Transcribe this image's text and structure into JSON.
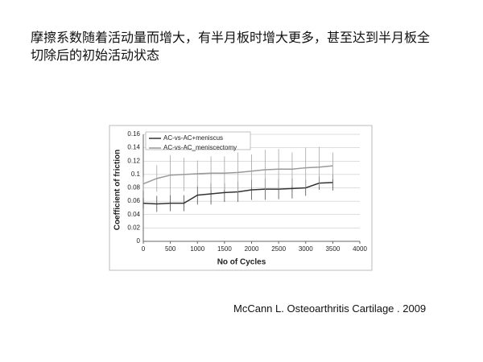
{
  "header": {
    "title": "摩擦系数随着活动量而增大，有半月板时增大更多，甚至达到半月板全切除后的初始活动状态"
  },
  "citation": "McCann L. Osteoarthritis Cartilage . 2009",
  "chart_data": {
    "type": "line",
    "x_label": "No of Cycles",
    "y_label": "Coefficient of friction",
    "x": [
      0,
      250,
      500,
      750,
      1000,
      1250,
      1500,
      1750,
      2000,
      2250,
      2500,
      2750,
      3000,
      3250,
      3500
    ],
    "series": [
      {
        "name": "AC-vs-AC+meniscus",
        "color": "#333333",
        "values": [
          0.057,
          0.056,
          0.057,
          0.057,
          0.069,
          0.071,
          0.073,
          0.074,
          0.077,
          0.078,
          0.078,
          0.079,
          0.08,
          0.087,
          0.088
        ],
        "errors": [
          0.008,
          0.012,
          0.012,
          0.012,
          0.014,
          0.016,
          0.014,
          0.015,
          0.015,
          0.016,
          0.015,
          0.015,
          0.012,
          0.01,
          0.012
        ]
      },
      {
        "name": "AC-vs-AC_meniscectomy",
        "color": "#999999",
        "values": [
          0.086,
          0.094,
          0.099,
          0.1,
          0.101,
          0.102,
          0.102,
          0.103,
          0.105,
          0.107,
          0.108,
          0.108,
          0.11,
          0.111,
          0.113
        ],
        "errors": [
          0.01,
          0.02,
          0.03,
          0.025,
          0.02,
          0.025,
          0.025,
          0.03,
          0.025,
          0.03,
          0.03,
          0.025,
          0.03,
          0.03,
          0.02
        ]
      }
    ],
    "xlim": [
      0,
      4000
    ],
    "xticks": [
      0,
      500,
      1000,
      1500,
      2000,
      2500,
      3000,
      3500,
      4000
    ],
    "ylim": [
      0,
      0.16
    ],
    "yticks": [
      0,
      0.02,
      0.04,
      0.06,
      0.08,
      0.1,
      0.12,
      0.14,
      0.16
    ],
    "grid": true,
    "legend": "top-left"
  }
}
